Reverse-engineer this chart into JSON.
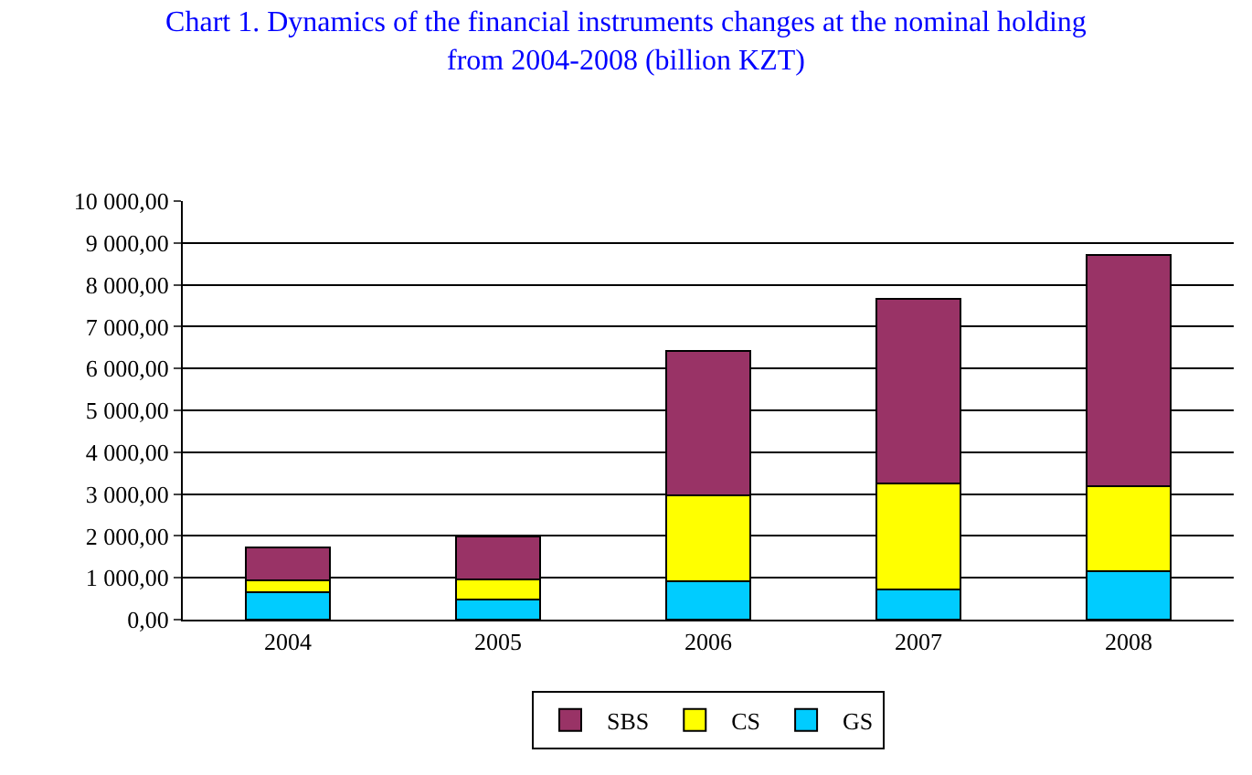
{
  "chart_data": {
    "type": "bar",
    "stacked": true,
    "title": "Chart 1. Dynamics of the financial instruments changes at the nominal holding from 2004-2008 (billion KZT)",
    "categories": [
      "2004",
      "2005",
      "2006",
      "2007",
      "2008"
    ],
    "series": [
      {
        "name": "GS",
        "color": "#00ccff",
        "values": [
          660,
          490,
          910,
          720,
          1150
        ]
      },
      {
        "name": "CS",
        "color": "#ffff00",
        "values": [
          270,
          470,
          2050,
          2540,
          2040
        ]
      },
      {
        "name": "SBS",
        "color": "#993366",
        "values": [
          790,
          1030,
          3450,
          4400,
          5520
        ]
      }
    ],
    "ylim": [
      0,
      10000
    ],
    "yticks": [
      {
        "value": 0,
        "label": "0,00"
      },
      {
        "value": 1000,
        "label": "1 000,00"
      },
      {
        "value": 2000,
        "label": "2 000,00"
      },
      {
        "value": 3000,
        "label": "3 000,00"
      },
      {
        "value": 4000,
        "label": "4 000,00"
      },
      {
        "value": 5000,
        "label": "5 000,00"
      },
      {
        "value": 6000,
        "label": "6 000,00"
      },
      {
        "value": 7000,
        "label": "7 000,00"
      },
      {
        "value": 8000,
        "label": "8 000,00"
      },
      {
        "value": 9000,
        "label": "9 000,00"
      },
      {
        "value": 10000,
        "label": "10 000,00"
      }
    ],
    "grid": "y",
    "legend": "bottom"
  }
}
